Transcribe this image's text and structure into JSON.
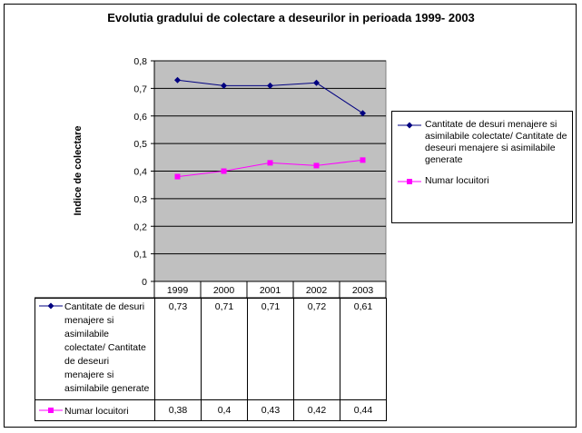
{
  "chart_data": {
    "type": "line",
    "title": "Evolutia gradului de colectare a deseurilor in perioada 1999- 2003",
    "ylabel": "Indice de colectare",
    "xlabel": "",
    "categories": [
      "1999",
      "2000",
      "2001",
      "2002",
      "2003"
    ],
    "ylim": [
      0,
      0.8
    ],
    "yticks": [
      "0",
      "0,1",
      "0,2",
      "0,3",
      "0,4",
      "0,5",
      "0,6",
      "0,7",
      "0,8"
    ],
    "grid": true,
    "legend_position": "right",
    "plot_background": "#c0c0c0",
    "series": [
      {
        "name": "Cantitate de desuri menajere si asimilabile colectate/ Cantitate de deseuri menajere si asimilabile generate",
        "color": "#000080",
        "marker": "diamond",
        "values": [
          0.73,
          0.71,
          0.71,
          0.72,
          0.61
        ],
        "labels": [
          "0,73",
          "0,71",
          "0,71",
          "0,72",
          "0,61"
        ]
      },
      {
        "name": "Numar locuitori",
        "color": "#ff00ff",
        "marker": "square",
        "values": [
          0.38,
          0.4,
          0.43,
          0.42,
          0.44
        ],
        "labels": [
          "0,38",
          "0,4",
          "0,43",
          "0,42",
          "0,44"
        ]
      }
    ],
    "legend_entries": [
      "Cantitate de desuri menajere si asimilabile colectate/ Cantitate de deseuri menajere si asimilabile generate",
      "Numar locuitori"
    ],
    "table_labels": [
      "Cantitate de desuri menajere si asimilabile colectate/ Cantitate de deseuri menajere si asimilabile generate",
      "Numar locuitori"
    ]
  }
}
